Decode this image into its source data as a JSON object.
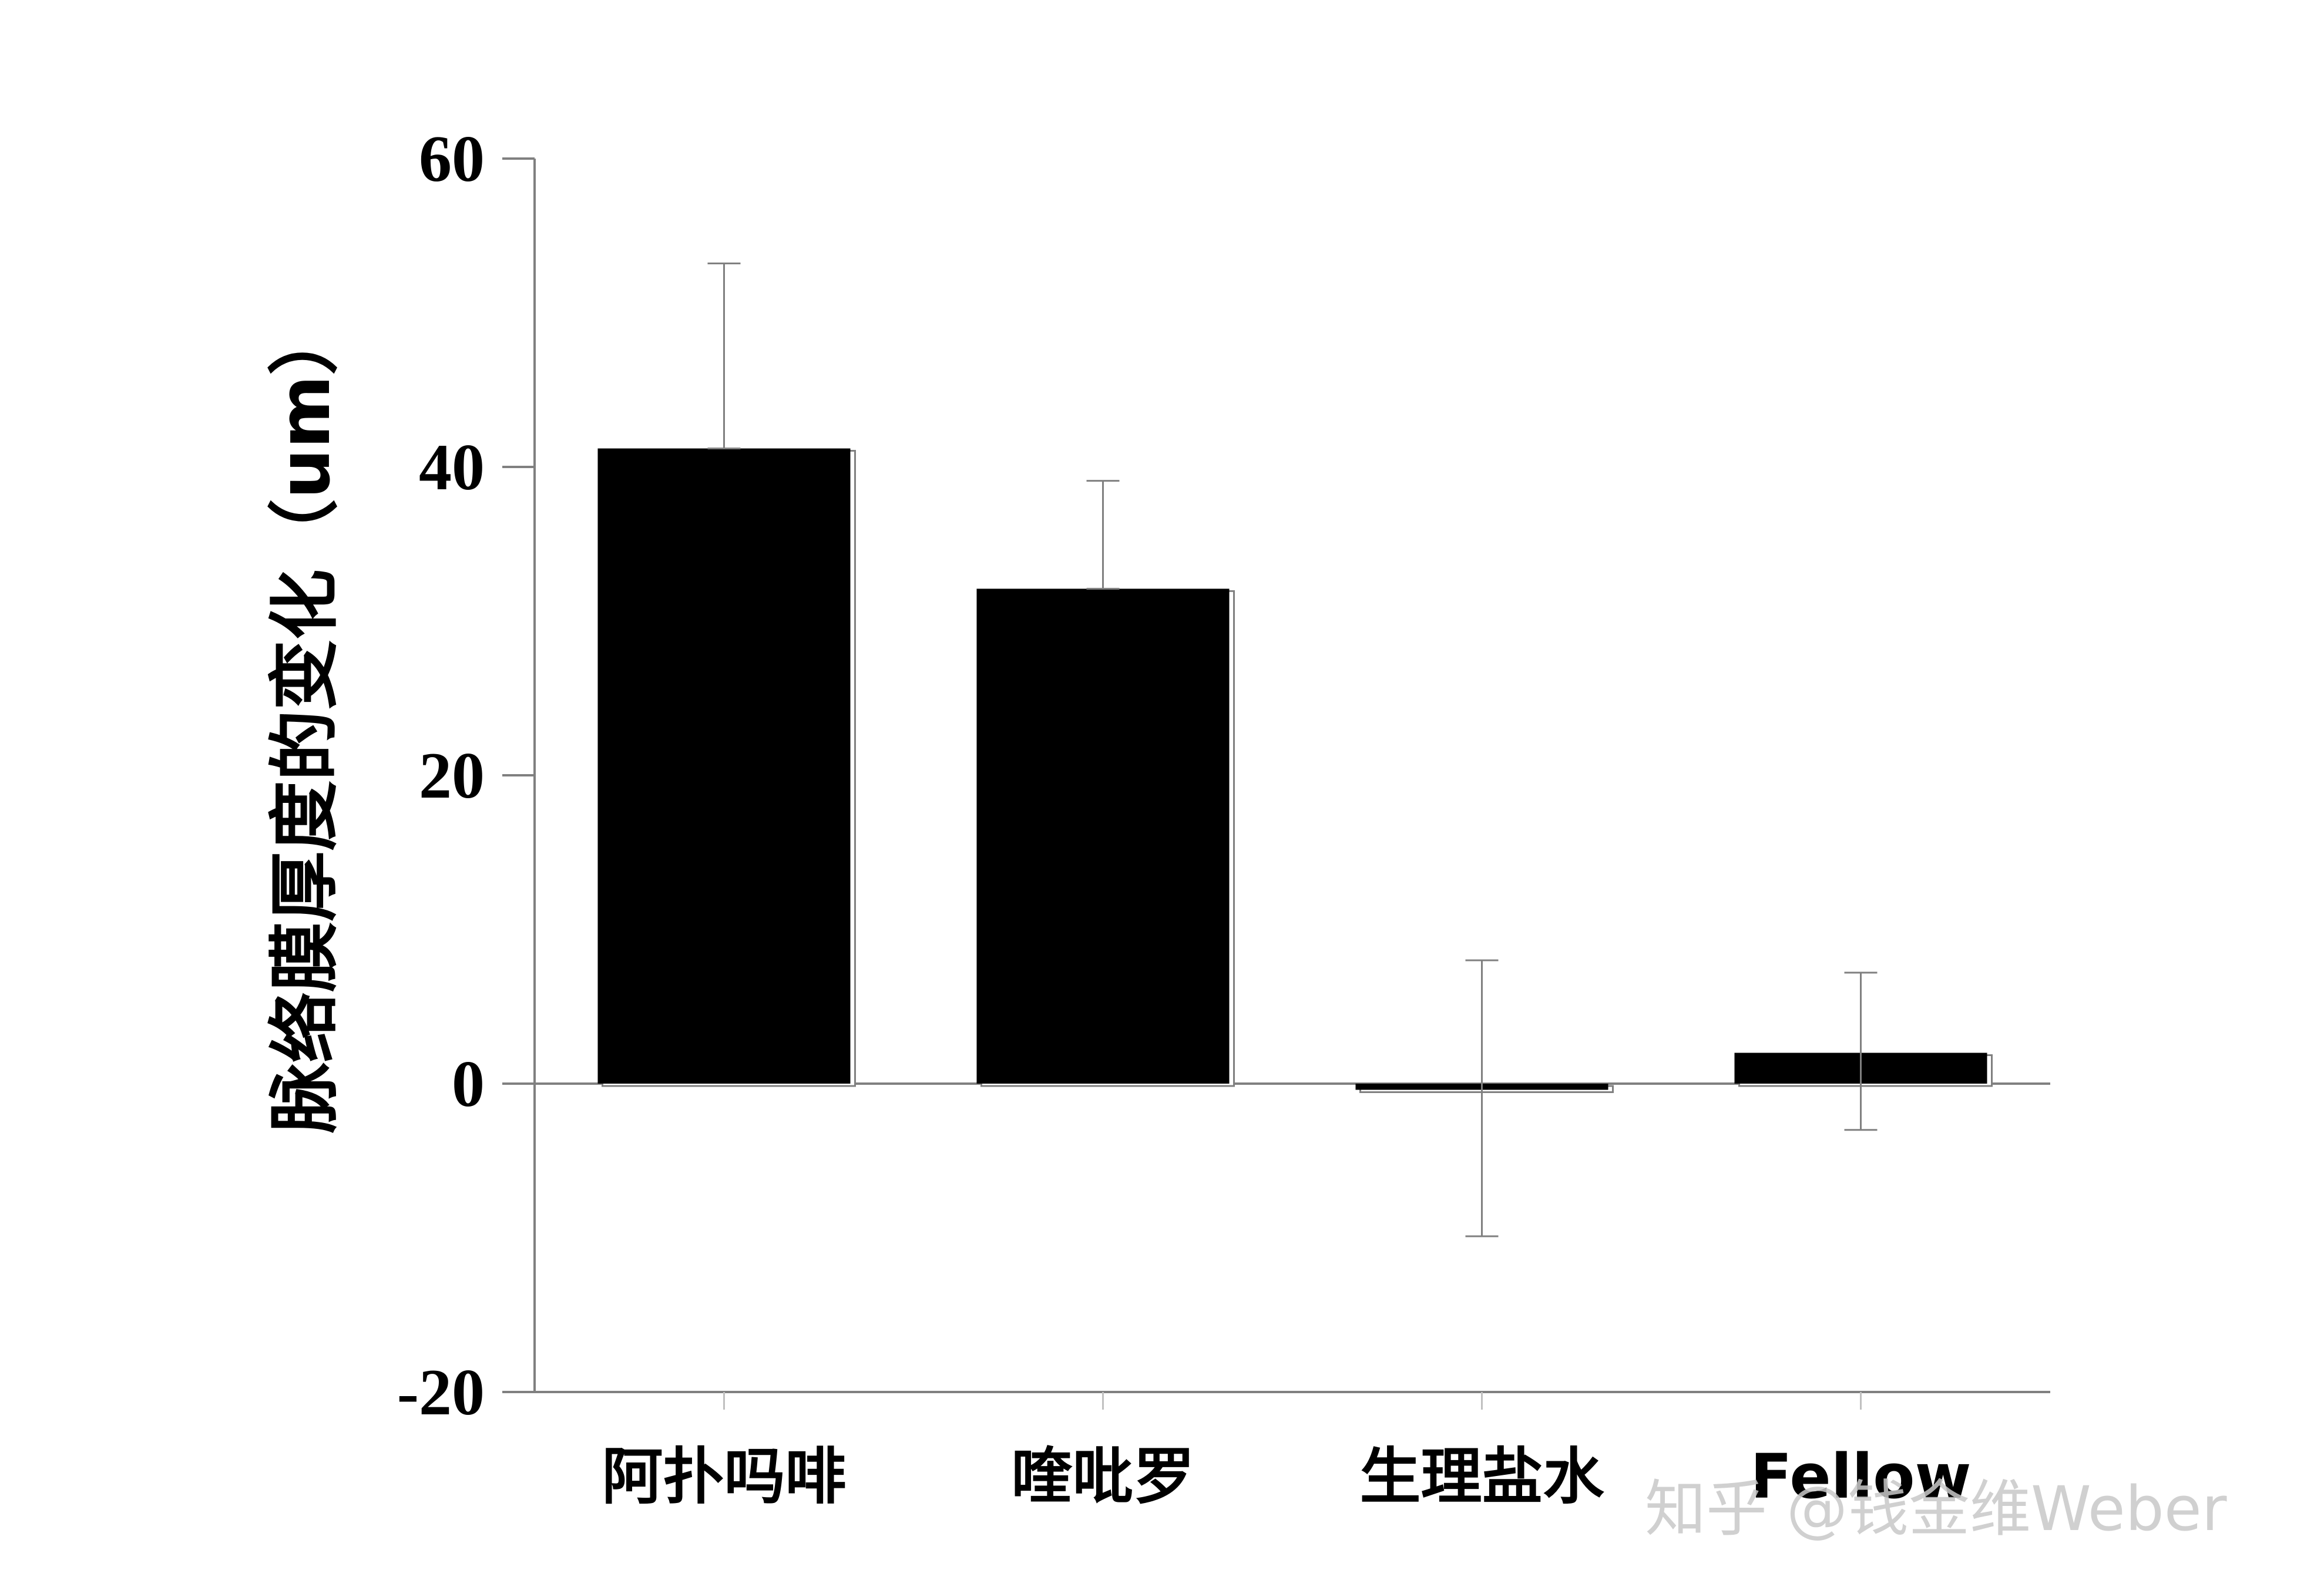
{
  "chart_data": {
    "type": "bar",
    "categories": [
      "阿扑吗啡",
      "喹吡罗",
      "生理盐水",
      "Fellow"
    ],
    "values": [
      41.2,
      32.1,
      -0.4,
      2.0
    ],
    "error_upper": [
      53.2,
      39.1,
      8.0,
      7.2
    ],
    "error_lower": [
      41.2,
      32.1,
      -9.9,
      -3.0
    ],
    "ylabel": "脉络膜厚度的变化（um）",
    "xlabel": "",
    "title": "",
    "ylim": [
      -20,
      60
    ],
    "yticks": [
      "-20",
      "0",
      "20",
      "40",
      "60"
    ],
    "bar_color": "#000000",
    "axis_color": "#808080",
    "grid": false
  },
  "watermark": "知乎 @钱金维Weber"
}
